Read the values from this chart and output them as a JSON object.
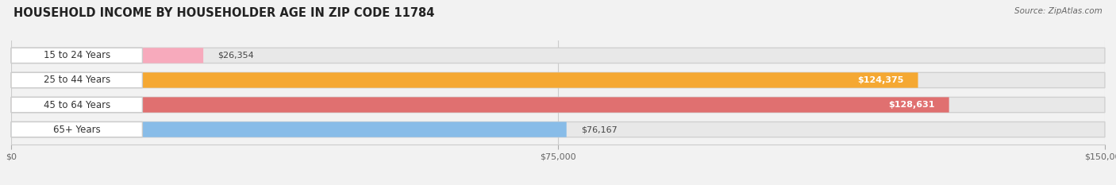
{
  "title": "HOUSEHOLD INCOME BY HOUSEHOLDER AGE IN ZIP CODE 11784",
  "source": "Source: ZipAtlas.com",
  "categories": [
    "15 to 24 Years",
    "25 to 44 Years",
    "45 to 64 Years",
    "65+ Years"
  ],
  "values": [
    26354,
    124375,
    128631,
    76167
  ],
  "bar_colors": [
    "#f7aabc",
    "#f5a832",
    "#e07070",
    "#88bce8"
  ],
  "bar_border_colors": [
    "#e888a0",
    "#e09020",
    "#c05050",
    "#60a0d8"
  ],
  "xlim": [
    0,
    150000
  ],
  "xticks": [
    0,
    75000,
    150000
  ],
  "xtick_labels": [
    "$0",
    "$75,000",
    "$150,000"
  ],
  "figsize": [
    14.06,
    2.33
  ],
  "dpi": 100,
  "bg_color": "#f2f2f2",
  "bar_bg_color": "#e8e8e8",
  "bar_bg_border": "#d0d0d0",
  "white_label_bg": "#ffffff"
}
